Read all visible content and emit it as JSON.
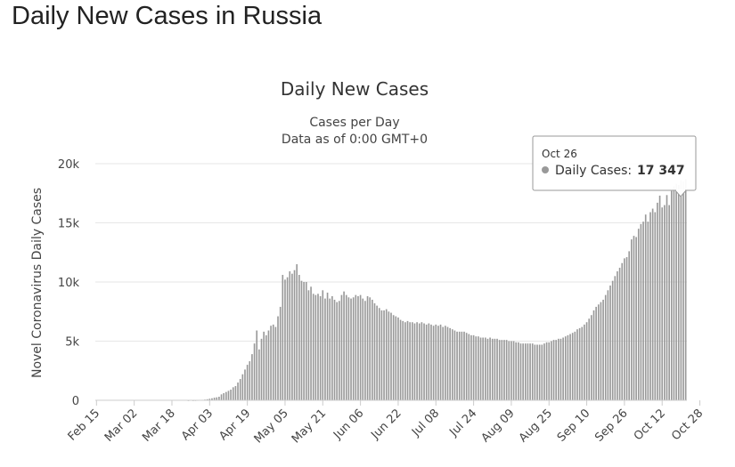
{
  "page": {
    "title": "Daily New Cases in Russia"
  },
  "colors": {
    "bar": "#999999",
    "grid": "#e6e6e6",
    "text": "#333333",
    "tooltip_border": "#999999"
  },
  "chart_data": {
    "type": "bar",
    "title": "Daily New Cases",
    "subtitle": "Cases per Day",
    "subtitle2": "Data as of 0:00 GMT+0",
    "ylabel": "Novel Coronavirus Daily Cases",
    "xlabel": "",
    "ylim": [
      0,
      20000
    ],
    "y_ticks": [
      {
        "value": 0,
        "label": "0"
      },
      {
        "value": 5000,
        "label": "5k"
      },
      {
        "value": 10000,
        "label": "10k"
      },
      {
        "value": 15000,
        "label": "15k"
      },
      {
        "value": 20000,
        "label": "20k"
      }
    ],
    "x_tick_labels": [
      "Feb 15",
      "Mar 02",
      "Mar 18",
      "Apr 03",
      "Apr 19",
      "May 05",
      "May 21",
      "Jun 06",
      "Jun 22",
      "Jul 08",
      "Jul 24",
      "Aug 09",
      "Aug 25",
      "Sep 10",
      "Sep 26",
      "Oct 12",
      "Oct 28"
    ],
    "x_range": [
      "Feb 15",
      "Nov 01"
    ],
    "grid": true,
    "legend": "none",
    "series": [
      {
        "name": "Daily Cases",
        "values": [
          0,
          0,
          0,
          0,
          0,
          0,
          0,
          0,
          0,
          0,
          0,
          0,
          0,
          0,
          0,
          0,
          0,
          0,
          0,
          0,
          0,
          0,
          0,
          0,
          0,
          0,
          0,
          0,
          0,
          0,
          0,
          0,
          0,
          0,
          0,
          0,
          0,
          0,
          0,
          5,
          0,
          5,
          10,
          20,
          30,
          40,
          60,
          90,
          130,
          170,
          220,
          250,
          300,
          500,
          600,
          700,
          800,
          900,
          1100,
          1200,
          1500,
          1800,
          2200,
          2600,
          3000,
          3300,
          3900,
          4800,
          5900,
          4300,
          5200,
          5800,
          5500,
          5900,
          6300,
          6400,
          6200,
          7100,
          7900,
          10600,
          10200,
          10400,
          10900,
          10700,
          11000,
          11500,
          10600,
          10100,
          10000,
          10000,
          9300,
          9600,
          9000,
          8900,
          9000,
          8800,
          9300,
          8600,
          9100,
          8600,
          8800,
          8500,
          8300,
          8400,
          8900,
          9200,
          8900,
          8700,
          8600,
          8700,
          8900,
          8800,
          8900,
          8600,
          8400,
          8800,
          8700,
          8500,
          8200,
          8000,
          7800,
          7600,
          7600,
          7700,
          7500,
          7400,
          7200,
          7100,
          7000,
          6800,
          6700,
          6600,
          6700,
          6600,
          6600,
          6500,
          6600,
          6500,
          6600,
          6500,
          6400,
          6500,
          6400,
          6300,
          6400,
          6300,
          6400,
          6200,
          6300,
          6200,
          6100,
          6000,
          5900,
          5800,
          5800,
          5800,
          5800,
          5700,
          5600,
          5500,
          5500,
          5400,
          5400,
          5300,
          5300,
          5300,
          5200,
          5300,
          5200,
          5200,
          5200,
          5100,
          5100,
          5100,
          5100,
          5000,
          5000,
          5000,
          4900,
          4900,
          4800,
          4800,
          4800,
          4800,
          4800,
          4800,
          4700,
          4700,
          4700,
          4700,
          4800,
          4900,
          4900,
          5000,
          5100,
          5100,
          5200,
          5200,
          5300,
          5400,
          5500,
          5600,
          5700,
          5800,
          6000,
          6100,
          6200,
          6400,
          6600,
          6900,
          7200,
          7600,
          7900,
          8100,
          8300,
          8500,
          8900,
          9300,
          9700,
          10100,
          10500,
          10900,
          11200,
          11600,
          12000,
          12100,
          12600,
          13600,
          13900,
          13800,
          14500,
          14900,
          15100,
          15700,
          15100,
          15900,
          16200,
          15900,
          16700,
          17300,
          16300,
          16500,
          17347,
          16500,
          17700,
          18100,
          18300,
          18200,
          18600,
          18500,
          18700
        ]
      }
    ],
    "tooltip": {
      "date": "Oct 26",
      "label": "Daily Cases:",
      "value": "17 347"
    }
  }
}
